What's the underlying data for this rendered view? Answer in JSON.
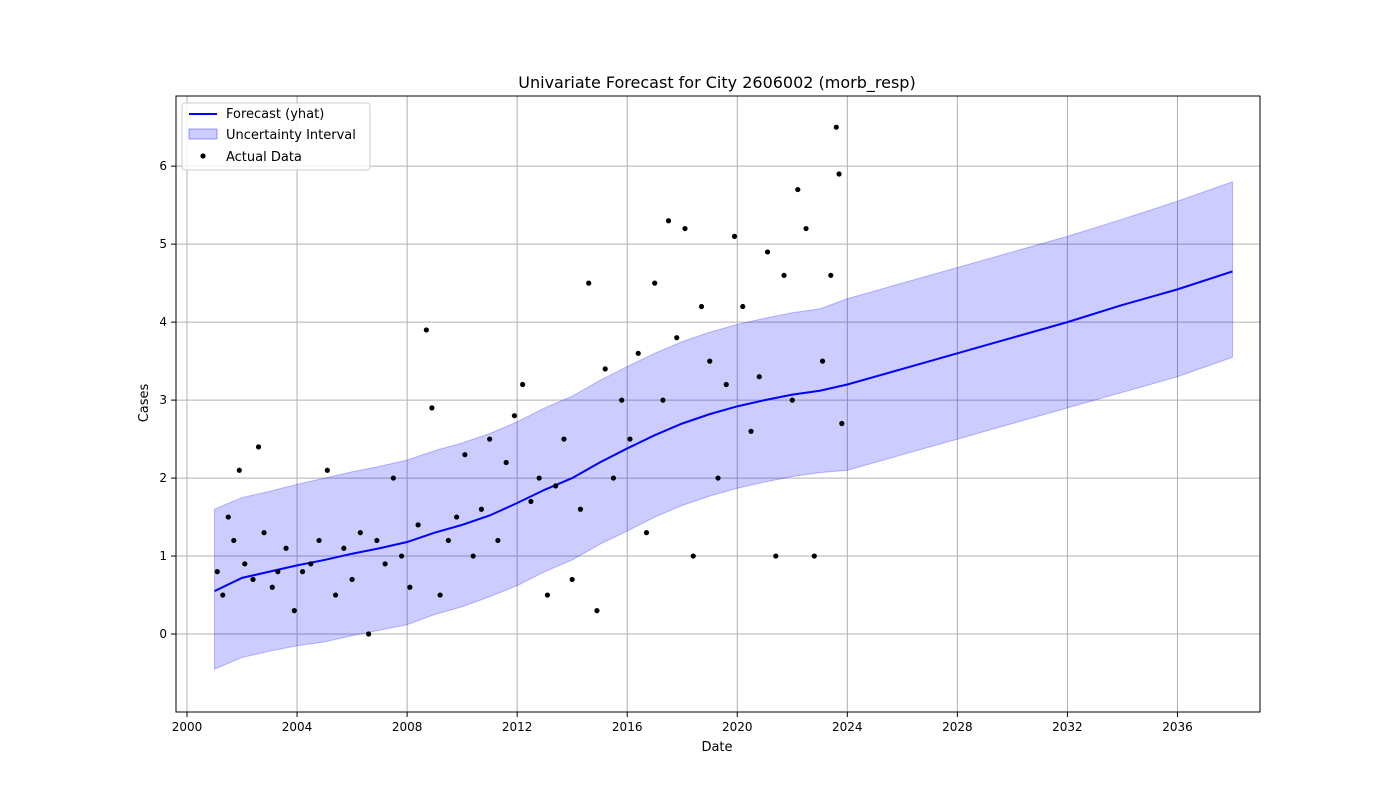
{
  "chart_data": {
    "type": "line",
    "title": "Univariate Forecast for City 2606002 (morb_resp)",
    "xlabel": "Date",
    "ylabel": "Cases",
    "xlim": [
      1999.6,
      2039.0
    ],
    "ylim": [
      -1.0,
      6.9
    ],
    "x_ticks": [
      "2000",
      "2004",
      "2008",
      "2012",
      "2016",
      "2020",
      "2024",
      "2028",
      "2032",
      "2036"
    ],
    "x_tick_values": [
      2000,
      2004,
      2008,
      2012,
      2016,
      2020,
      2024,
      2028,
      2032,
      2036
    ],
    "y_ticks": [
      "0",
      "1",
      "2",
      "3",
      "4",
      "5",
      "6"
    ],
    "y_tick_values": [
      0,
      1,
      2,
      3,
      4,
      5,
      6
    ],
    "grid": true,
    "legend_position": "top-left",
    "legend": [
      {
        "label": "Forecast (yhat)",
        "kind": "line",
        "color": "#0000ff"
      },
      {
        "label": "Uncertainty Interval",
        "kind": "band",
        "color": "#0000ff"
      },
      {
        "label": "Actual Data",
        "kind": "scatter",
        "color": "#000000"
      }
    ],
    "forecast": {
      "name": "Forecast (yhat)",
      "color": "#0000ff",
      "band_color": "#0000ff",
      "band_opacity": 0.2,
      "points": [
        [
          2001.0,
          0.55
        ],
        [
          2002.0,
          0.72
        ],
        [
          2003.0,
          0.8
        ],
        [
          2004.0,
          0.88
        ],
        [
          2005.0,
          0.95
        ],
        [
          2006.0,
          1.03
        ],
        [
          2007.0,
          1.1
        ],
        [
          2008.0,
          1.18
        ],
        [
          2009.0,
          1.3
        ],
        [
          2010.0,
          1.4
        ],
        [
          2011.0,
          1.52
        ],
        [
          2012.0,
          1.68
        ],
        [
          2013.0,
          1.85
        ],
        [
          2014.0,
          2.0
        ],
        [
          2015.0,
          2.2
        ],
        [
          2016.0,
          2.38
        ],
        [
          2017.0,
          2.55
        ],
        [
          2018.0,
          2.7
        ],
        [
          2019.0,
          2.82
        ],
        [
          2020.0,
          2.92
        ],
        [
          2021.0,
          3.0
        ],
        [
          2022.0,
          3.07
        ],
        [
          2023.0,
          3.12
        ],
        [
          2024.0,
          3.2
        ],
        [
          2026.0,
          3.4
        ],
        [
          2028.0,
          3.6
        ],
        [
          2030.0,
          3.8
        ],
        [
          2032.0,
          4.0
        ],
        [
          2034.0,
          4.22
        ],
        [
          2036.0,
          4.42
        ],
        [
          2038.0,
          4.65
        ]
      ],
      "lower": [
        [
          2001.0,
          -0.45
        ],
        [
          2002.0,
          -0.3
        ],
        [
          2003.0,
          -0.22
        ],
        [
          2004.0,
          -0.15
        ],
        [
          2005.0,
          -0.1
        ],
        [
          2006.0,
          -0.02
        ],
        [
          2007.0,
          0.05
        ],
        [
          2008.0,
          0.12
        ],
        [
          2009.0,
          0.25
        ],
        [
          2010.0,
          0.35
        ],
        [
          2011.0,
          0.48
        ],
        [
          2012.0,
          0.62
        ],
        [
          2013.0,
          0.8
        ],
        [
          2014.0,
          0.95
        ],
        [
          2015.0,
          1.15
        ],
        [
          2016.0,
          1.32
        ],
        [
          2017.0,
          1.5
        ],
        [
          2018.0,
          1.65
        ],
        [
          2019.0,
          1.77
        ],
        [
          2020.0,
          1.87
        ],
        [
          2021.0,
          1.95
        ],
        [
          2022.0,
          2.02
        ],
        [
          2023.0,
          2.07
        ],
        [
          2024.0,
          2.1
        ],
        [
          2026.0,
          2.3
        ],
        [
          2028.0,
          2.5
        ],
        [
          2030.0,
          2.7
        ],
        [
          2032.0,
          2.9
        ],
        [
          2034.0,
          3.1
        ],
        [
          2036.0,
          3.3
        ],
        [
          2038.0,
          3.55
        ]
      ],
      "upper": [
        [
          2001.0,
          1.6
        ],
        [
          2002.0,
          1.75
        ],
        [
          2003.0,
          1.83
        ],
        [
          2004.0,
          1.92
        ],
        [
          2005.0,
          2.0
        ],
        [
          2006.0,
          2.08
        ],
        [
          2007.0,
          2.15
        ],
        [
          2008.0,
          2.23
        ],
        [
          2009.0,
          2.35
        ],
        [
          2010.0,
          2.45
        ],
        [
          2011.0,
          2.57
        ],
        [
          2012.0,
          2.72
        ],
        [
          2013.0,
          2.9
        ],
        [
          2014.0,
          3.05
        ],
        [
          2015.0,
          3.25
        ],
        [
          2016.0,
          3.43
        ],
        [
          2017.0,
          3.6
        ],
        [
          2018.0,
          3.75
        ],
        [
          2019.0,
          3.87
        ],
        [
          2020.0,
          3.97
        ],
        [
          2021.0,
          4.05
        ],
        [
          2022.0,
          4.12
        ],
        [
          2023.0,
          4.17
        ],
        [
          2024.0,
          4.3
        ],
        [
          2026.0,
          4.5
        ],
        [
          2028.0,
          4.7
        ],
        [
          2030.0,
          4.9
        ],
        [
          2032.0,
          5.1
        ],
        [
          2034.0,
          5.32
        ],
        [
          2036.0,
          5.55
        ],
        [
          2038.0,
          5.8
        ]
      ]
    },
    "actual": {
      "name": "Actual Data",
      "color": "#000000",
      "points": [
        [
          2001.1,
          0.8
        ],
        [
          2001.3,
          0.5
        ],
        [
          2001.5,
          1.5
        ],
        [
          2001.7,
          1.2
        ],
        [
          2001.9,
          2.1
        ],
        [
          2002.1,
          0.9
        ],
        [
          2002.4,
          0.7
        ],
        [
          2002.6,
          2.4
        ],
        [
          2002.8,
          1.3
        ],
        [
          2003.1,
          0.6
        ],
        [
          2003.3,
          0.8
        ],
        [
          2003.6,
          1.1
        ],
        [
          2003.9,
          0.3
        ],
        [
          2004.2,
          0.8
        ],
        [
          2004.5,
          0.9
        ],
        [
          2004.8,
          1.2
        ],
        [
          2005.1,
          2.1
        ],
        [
          2005.4,
          0.5
        ],
        [
          2005.7,
          1.1
        ],
        [
          2006.0,
          0.7
        ],
        [
          2006.3,
          1.3
        ],
        [
          2006.6,
          0.0
        ],
        [
          2006.9,
          1.2
        ],
        [
          2007.2,
          0.9
        ],
        [
          2007.5,
          2.0
        ],
        [
          2007.8,
          1.0
        ],
        [
          2008.1,
          0.6
        ],
        [
          2008.4,
          1.4
        ],
        [
          2008.7,
          3.9
        ],
        [
          2008.9,
          2.9
        ],
        [
          2009.2,
          0.5
        ],
        [
          2009.5,
          1.2
        ],
        [
          2009.8,
          1.5
        ],
        [
          2010.1,
          2.3
        ],
        [
          2010.4,
          1.0
        ],
        [
          2010.7,
          1.6
        ],
        [
          2011.0,
          2.5
        ],
        [
          2011.3,
          1.2
        ],
        [
          2011.6,
          2.2
        ],
        [
          2011.9,
          2.8
        ],
        [
          2012.2,
          3.2
        ],
        [
          2012.5,
          1.7
        ],
        [
          2012.8,
          2.0
        ],
        [
          2013.1,
          0.5
        ],
        [
          2013.4,
          1.9
        ],
        [
          2013.7,
          2.5
        ],
        [
          2014.0,
          0.7
        ],
        [
          2014.3,
          1.6
        ],
        [
          2014.6,
          4.5
        ],
        [
          2014.9,
          0.3
        ],
        [
          2015.2,
          3.4
        ],
        [
          2015.5,
          2.0
        ],
        [
          2015.8,
          3.0
        ],
        [
          2016.1,
          2.5
        ],
        [
          2016.4,
          3.6
        ],
        [
          2016.7,
          1.3
        ],
        [
          2017.0,
          4.5
        ],
        [
          2017.3,
          3.0
        ],
        [
          2017.5,
          5.3
        ],
        [
          2017.8,
          3.8
        ],
        [
          2018.1,
          5.2
        ],
        [
          2018.4,
          1.0
        ],
        [
          2018.7,
          4.2
        ],
        [
          2019.0,
          3.5
        ],
        [
          2019.3,
          2.0
        ],
        [
          2019.6,
          3.2
        ],
        [
          2019.9,
          5.1
        ],
        [
          2020.2,
          4.2
        ],
        [
          2020.5,
          2.6
        ],
        [
          2020.8,
          3.3
        ],
        [
          2021.1,
          4.9
        ],
        [
          2021.4,
          1.0
        ],
        [
          2021.7,
          4.6
        ],
        [
          2022.0,
          3.0
        ],
        [
          2022.2,
          5.7
        ],
        [
          2022.5,
          5.2
        ],
        [
          2022.8,
          1.0
        ],
        [
          2023.1,
          3.5
        ],
        [
          2023.4,
          4.6
        ],
        [
          2023.6,
          6.5
        ],
        [
          2023.7,
          5.9
        ],
        [
          2023.8,
          2.7
        ]
      ]
    }
  }
}
